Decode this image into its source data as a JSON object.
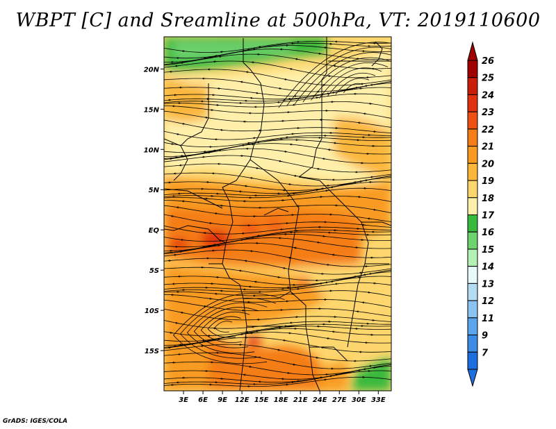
{
  "title": "WBPT [C] and Sreamline at 500hPa, VT: 2019110600",
  "footer": "GrADS: IGES/COLA",
  "map": {
    "lon_range": [
      0,
      35
    ],
    "lat_range": [
      -20,
      24
    ],
    "lat_ticks": [
      {
        "value": 20,
        "label": "20N"
      },
      {
        "value": 15,
        "label": "15N"
      },
      {
        "value": 10,
        "label": "10N"
      },
      {
        "value": 5,
        "label": "5N"
      },
      {
        "value": 0,
        "label": "EQ"
      },
      {
        "value": -5,
        "label": "5S"
      },
      {
        "value": -10,
        "label": "10S"
      },
      {
        "value": -15,
        "label": "15S"
      }
    ],
    "lon_ticks": [
      {
        "value": 3,
        "label": "3E"
      },
      {
        "value": 6,
        "label": "6E"
      },
      {
        "value": 9,
        "label": "9E"
      },
      {
        "value": 12,
        "label": "12E"
      },
      {
        "value": 15,
        "label": "15E"
      },
      {
        "value": 18,
        "label": "18E"
      },
      {
        "value": 21,
        "label": "21E"
      },
      {
        "value": 24,
        "label": "24E"
      },
      {
        "value": 27,
        "label": "27E"
      },
      {
        "value": 30,
        "label": "30E"
      },
      {
        "value": 33,
        "label": "33E"
      }
    ]
  },
  "colorbar": {
    "levels": [
      {
        "label": "26",
        "color": "#a00000"
      },
      {
        "label": "25",
        "color": "#c81e0a"
      },
      {
        "label": "24",
        "color": "#e0320f"
      },
      {
        "label": "23",
        "color": "#ef5014"
      },
      {
        "label": "22",
        "color": "#f57d19"
      },
      {
        "label": "21",
        "color": "#f99b23"
      },
      {
        "label": "20",
        "color": "#fbb73c"
      },
      {
        "label": "19",
        "color": "#fdd76e"
      },
      {
        "label": "18",
        "color": "#fef0aa"
      },
      {
        "label": "17",
        "color": "#37b93c"
      },
      {
        "label": "16",
        "color": "#6ed26e"
      },
      {
        "label": "15",
        "color": "#b4f0b4"
      },
      {
        "label": "14",
        "color": "#e6fafa"
      },
      {
        "label": "13",
        "color": "#b4dcf5"
      },
      {
        "label": "12",
        "color": "#8cc3f0"
      },
      {
        "label": "11",
        "color": "#5aa5eb"
      },
      {
        "label": "9",
        "color": "#3c8ce6"
      },
      {
        "label": "7",
        "color": "#1e6ee0"
      }
    ],
    "top_color": "#a00000",
    "bottom_color": "#1e6ee0"
  }
}
